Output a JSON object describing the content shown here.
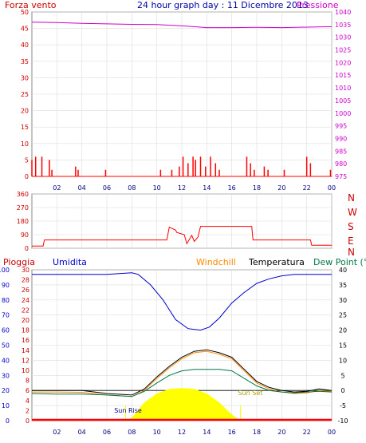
{
  "header": {
    "left_label": "Forza vento",
    "title": "24 hour graph day : 11 Dicembre 2013",
    "right_label": "Pressione"
  },
  "wind_dir_labels": [
    "N",
    "W",
    "S",
    "E",
    "N"
  ],
  "legend_lower": {
    "pioggia": "Pioggia",
    "umidita": "Umidita",
    "windchill": "Windchill",
    "temperatura": "Temperatura",
    "dewpoint": "Dew Point (°C"
  },
  "sun_labels": {
    "rise": "Sun Rise",
    "set": "Sun Set"
  },
  "colors": {
    "wind_axis": "#cc0000",
    "pressure": "#cc00cc",
    "humidity": "#0000cc",
    "temperature": "#000000",
    "dewpoint": "#007744",
    "windchill": "#ff8800",
    "sun": "#ffff00",
    "rain": "#ff0000",
    "grid": "#dddddd"
  },
  "chart_data": [
    {
      "type": "line",
      "title": "24 hour graph day : 11 Dicembre 2013",
      "x_ticks": [
        "02",
        "04",
        "06",
        "08",
        "10",
        "12",
        "14",
        "16",
        "18",
        "20",
        "22",
        "00"
      ],
      "y_left": {
        "label": "Forza vento",
        "ticks": [
          0,
          5,
          10,
          15,
          20,
          25,
          30,
          35,
          40,
          45,
          50
        ],
        "range": [
          0,
          50
        ]
      },
      "y_right": {
        "label": "Pressione",
        "ticks": [
          975,
          980,
          985,
          990,
          995,
          1000,
          1005,
          1010,
          1015,
          1020,
          1025,
          1030,
          1035,
          1040
        ],
        "range": [
          975,
          1040
        ]
      },
      "series": [
        {
          "name": "Pressione",
          "axis": "right",
          "x": [
            0,
            2,
            4,
            6,
            8,
            10,
            12,
            14,
            16,
            18,
            20,
            22,
            24
          ],
          "values": [
            1036,
            1035.8,
            1035.5,
            1035.3,
            1035.1,
            1035,
            1034.5,
            1033.8,
            1033.8,
            1033.9,
            1033.8,
            1034,
            1034.2
          ]
        },
        {
          "name": "Forza vento",
          "axis": "left",
          "x": [
            0,
            0.3,
            0.8,
            1.4,
            1.6,
            3.5,
            3.7,
            5.9,
            10.3,
            11.2,
            11.8,
            12.1,
            12.5,
            12.9,
            13.1,
            13.5,
            13.9,
            14.3,
            14.7,
            15.0,
            17.2,
            17.5,
            17.8,
            18.6,
            18.9,
            20.2,
            22.0,
            22.3,
            23.9
          ],
          "values": [
            5,
            6,
            6,
            5,
            2,
            3,
            2,
            2,
            2,
            2,
            3,
            6,
            4,
            6,
            5,
            6,
            3,
            6,
            4,
            2,
            6,
            4,
            2,
            3,
            2,
            2,
            6,
            4,
            2
          ]
        }
      ]
    },
    {
      "type": "line",
      "title": "",
      "y_left": {
        "ticks": [
          0,
          90,
          180,
          270,
          360
        ],
        "range": [
          0,
          360
        ]
      },
      "y_right_labels": [
        "N",
        "W",
        "S",
        "E",
        "N"
      ],
      "series": [
        {
          "name": "",
          "x": [
            0,
            0.9,
            1.0,
            10.8,
            11.0,
            11.5,
            11.6,
            12.2,
            12.4,
            12.8,
            13.0,
            13.3,
            13.5,
            13.7,
            14.0,
            17.6,
            17.7,
            22.3,
            22.4,
            24.0
          ],
          "values": [
            15,
            15,
            55,
            55,
            140,
            120,
            105,
            90,
            30,
            85,
            45,
            75,
            145,
            145,
            145,
            145,
            55,
            55,
            20,
            20
          ]
        }
      ]
    },
    {
      "type": "line",
      "title": "",
      "x_ticks": [
        "02",
        "04",
        "06",
        "08",
        "10",
        "12",
        "14",
        "16",
        "18",
        "20",
        "22",
        "00"
      ],
      "y_left_humidity": {
        "label": "Umidita",
        "ticks": [
          0,
          10,
          20,
          30,
          40,
          50,
          60,
          70,
          80,
          90,
          100
        ],
        "range": [
          0,
          100
        ]
      },
      "y_left_rain": {
        "label": "Pioggia",
        "ticks": [
          0,
          2,
          4,
          6,
          8,
          10,
          12,
          14,
          16,
          18,
          20,
          22,
          24,
          26,
          28,
          30
        ],
        "range": [
          0,
          30
        ]
      },
      "y_right": {
        "label": "Dew Point (°C",
        "ticks": [
          -10,
          -5,
          0,
          5,
          10,
          15,
          20,
          25,
          30,
          35,
          40
        ],
        "range": [
          -10,
          40
        ]
      },
      "series": [
        {
          "name": "Umidita",
          "axis": "humidity",
          "x": [
            0,
            2,
            4,
            6,
            8,
            8.5,
            9.5,
            10.5,
            11.5,
            12.5,
            13.5,
            14.2,
            15,
            16,
            17,
            18,
            19,
            20,
            21,
            22,
            23,
            24
          ],
          "values": [
            97,
            97,
            97,
            97,
            98,
            97,
            90,
            80,
            67,
            61,
            60,
            62,
            68,
            78,
            85,
            91,
            94,
            96,
            97,
            97,
            97,
            97
          ]
        },
        {
          "name": "Temperatura",
          "axis": "temp",
          "x": [
            0,
            2,
            4,
            6,
            8,
            9,
            10,
            11,
            12,
            13,
            14,
            15,
            16,
            17,
            18,
            19,
            20,
            21,
            22,
            23,
            24
          ],
          "values": [
            0,
            0,
            0,
            -1,
            -1.5,
            0.5,
            4.5,
            8,
            11,
            13,
            13.5,
            12.5,
            11,
            7,
            3,
            1,
            0,
            -0.5,
            -0.3,
            0.5,
            0
          ]
        },
        {
          "name": "Dew Point",
          "axis": "temp",
          "x": [
            0,
            2,
            4,
            6,
            8,
            9,
            10,
            11,
            12,
            13,
            14,
            15,
            16,
            17,
            18,
            19,
            20,
            21,
            22,
            23,
            24
          ],
          "values": [
            -1,
            -1.2,
            -1.2,
            -1.5,
            -2,
            -0.3,
            2.5,
            5,
            6.5,
            7,
            7,
            7,
            6.5,
            4,
            1.5,
            0,
            -0.5,
            -0.8,
            -0.5,
            -0.3,
            -0.5
          ]
        },
        {
          "name": "Windchill",
          "axis": "temp",
          "x": [
            0,
            2,
            4,
            6,
            8,
            9,
            10,
            11,
            12,
            13,
            14,
            15,
            16,
            17,
            18,
            19,
            20,
            21,
            22,
            23,
            24
          ],
          "values": [
            -0.5,
            -0.5,
            -0.6,
            -1.5,
            -2,
            0,
            4,
            7.5,
            10.5,
            12.5,
            13,
            12,
            10.5,
            6.5,
            2.5,
            0.5,
            -0.5,
            -1,
            -0.8,
            0,
            -0.3
          ]
        },
        {
          "name": "Sun",
          "axis": "temp",
          "x": [
            7.5,
            8,
            9,
            10,
            11,
            12,
            13,
            14,
            15,
            16,
            16.7
          ],
          "values": [
            -10,
            -9,
            -4,
            -1,
            0.5,
            0.8,
            0.5,
            -1,
            -4,
            -8,
            -10
          ]
        },
        {
          "name": "Pioggia",
          "axis": "rain",
          "x": [
            0,
            24
          ],
          "values": [
            0,
            0
          ]
        }
      ],
      "annotations": [
        "Sun Rise",
        "Sun Set"
      ]
    }
  ]
}
